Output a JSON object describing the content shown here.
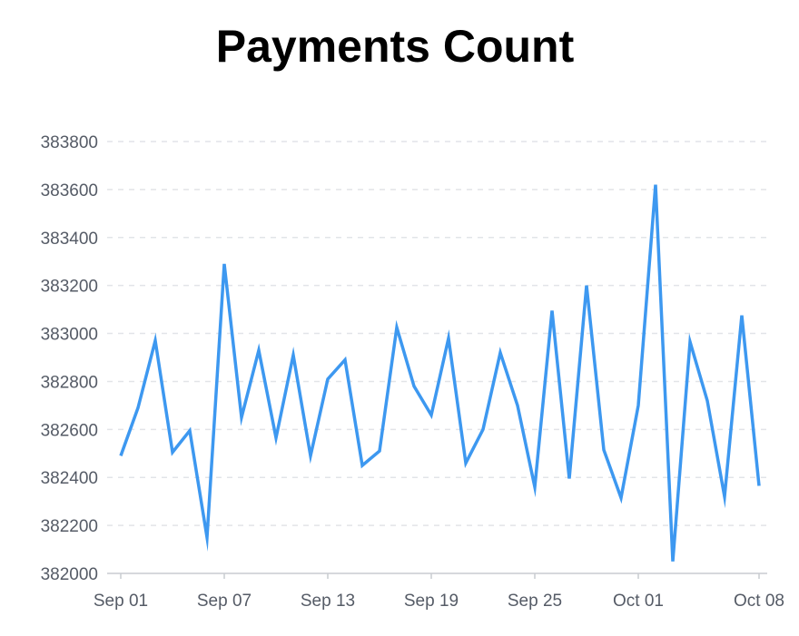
{
  "chart_data": {
    "type": "line",
    "title": "Payments Count",
    "xlabel": "",
    "ylabel": "",
    "x": [
      "Sep 01",
      "Sep 02",
      "Sep 03",
      "Sep 04",
      "Sep 05",
      "Sep 06",
      "Sep 07",
      "Sep 08",
      "Sep 09",
      "Sep 10",
      "Sep 11",
      "Sep 12",
      "Sep 13",
      "Sep 14",
      "Sep 15",
      "Sep 16",
      "Sep 17",
      "Sep 18",
      "Sep 19",
      "Sep 20",
      "Sep 21",
      "Sep 22",
      "Sep 23",
      "Sep 24",
      "Sep 25",
      "Sep 26",
      "Sep 27",
      "Sep 28",
      "Sep 29",
      "Sep 30",
      "Oct 01",
      "Oct 02",
      "Oct 03",
      "Oct 04",
      "Oct 05",
      "Oct 06",
      "Oct 07",
      "Oct 08"
    ],
    "x_ticks": [
      "Sep 01",
      "Sep 07",
      "Sep 13",
      "Sep 19",
      "Sep 25",
      "Oct 01",
      "Oct 08"
    ],
    "series": [
      {
        "values": [
          382490,
          382690,
          382970,
          382505,
          382595,
          382150,
          383290,
          382650,
          382930,
          382565,
          382910,
          382490,
          382810,
          382890,
          382450,
          382510,
          383025,
          382780,
          382660,
          382980,
          382460,
          382600,
          382920,
          382700,
          382360,
          383095,
          382395,
          383200,
          382515,
          382315,
          382700,
          383620,
          382050,
          382965,
          382720,
          382320,
          383075,
          382365
        ]
      }
    ],
    "ylim": [
      382000,
      383800
    ],
    "y_ticks": [
      382000,
      382200,
      382400,
      382600,
      382800,
      383000,
      383200,
      383400,
      383600,
      383800
    ],
    "grid": true,
    "line_color": "#3d98f0",
    "grid_color": "#e2e4e8",
    "axis_color": "#c9ccd1",
    "text_color": "#555b66"
  }
}
